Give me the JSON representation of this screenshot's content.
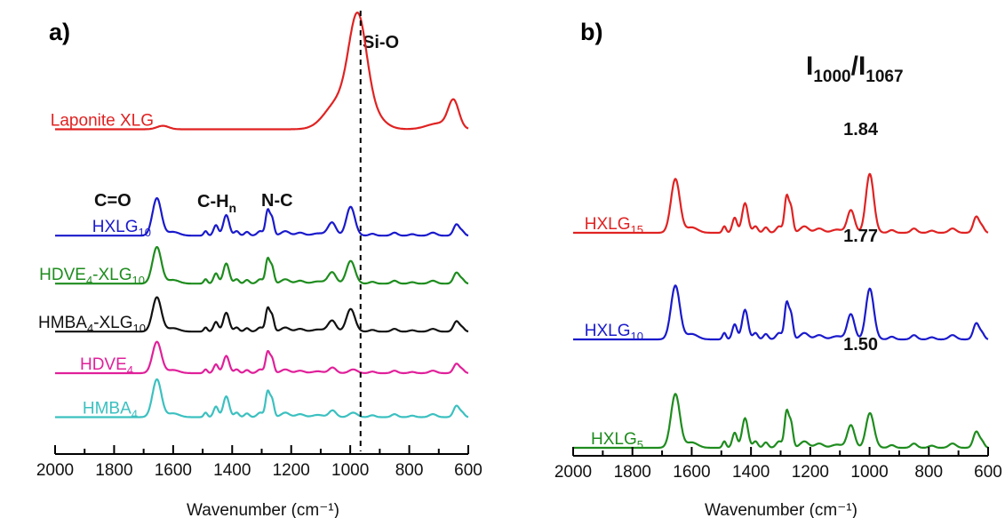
{
  "chart_data": [
    {
      "type": "line",
      "panel_label": "a)",
      "xlabel": "Wavenumber (cm⁻¹)",
      "xlim": [
        2000,
        600
      ],
      "x_ticks": [
        "2000",
        "1800",
        "1600",
        "1400",
        "1200",
        "1000",
        "800",
        "600"
      ],
      "annotations": [
        "C=O",
        "C-H",
        "n",
        "N-C",
        "Si-O"
      ],
      "reference_line_x": 965,
      "series": [
        {
          "name": "Laponite XLG",
          "label_main": "Laponite XLG",
          "label_sub": "",
          "label_tail": "",
          "color": "#e02222",
          "profile": "laponite",
          "baseline": 4.05,
          "amp": 1.0
        },
        {
          "name": "HXLG10",
          "label_main": "HXLG",
          "label_sub": "10",
          "label_tail": "",
          "color": "#1a1acc",
          "profile": "hxlg",
          "baseline": 2.72,
          "amp": 0.85
        },
        {
          "name": "HDVE4-XLG10",
          "label_main": "HDVE",
          "label_sub": "4",
          "label_tail": "-XLG",
          "label_sub2": "10",
          "color": "#1e8c1e",
          "profile": "hdve_xlg",
          "baseline": 2.12,
          "amp": 0.83
        },
        {
          "name": "HMBA4-XLG10",
          "label_main": "HMBA",
          "label_sub": "4",
          "label_tail": "-XLG",
          "label_sub2": "10",
          "color": "#111111",
          "profile": "hmba_xlg",
          "baseline": 1.52,
          "amp": 0.78
        },
        {
          "name": "HDVE4",
          "label_main": "HDVE",
          "label_sub": "4",
          "label_tail": "",
          "color": "#e0209a",
          "profile": "hdve",
          "baseline": 1.0,
          "amp": 0.75
        },
        {
          "name": "HMBA4",
          "label_main": "HMBA",
          "label_sub": "4",
          "label_tail": "",
          "color": "#3cc0c0",
          "profile": "hmba",
          "baseline": 0.45,
          "amp": 0.78
        }
      ]
    },
    {
      "type": "line",
      "panel_label": "b)",
      "xlabel": "Wavenumber (cm⁻¹)",
      "xlim": [
        2000,
        600
      ],
      "x_ticks": [
        "2000",
        "1800",
        "1600",
        "1400",
        "1200",
        "1000",
        "800",
        "600"
      ],
      "ratio_title_main": "I",
      "ratio_title_sub1": "1000",
      "ratio_title_slash": "/I",
      "ratio_title_sub2": "1067",
      "series": [
        {
          "name": "HXLG15",
          "label_main": "HXLG",
          "label_sub": "15",
          "color": "#e02222",
          "ratio": "1.84",
          "profile": "hxlg15",
          "baseline": 2.5,
          "amp": 1.1
        },
        {
          "name": "HXLG10",
          "label_main": "HXLG",
          "label_sub": "10",
          "color": "#1a1acc",
          "ratio": "1.77",
          "profile": "hxlg10b",
          "baseline": 1.3,
          "amp": 1.1
        },
        {
          "name": "HXLG5",
          "label_main": "HXLG",
          "label_sub": "5",
          "color": "#1e8c1e",
          "ratio": "1.50",
          "profile": "hxlg5",
          "baseline": 0.08,
          "amp": 1.1
        }
      ]
    }
  ]
}
